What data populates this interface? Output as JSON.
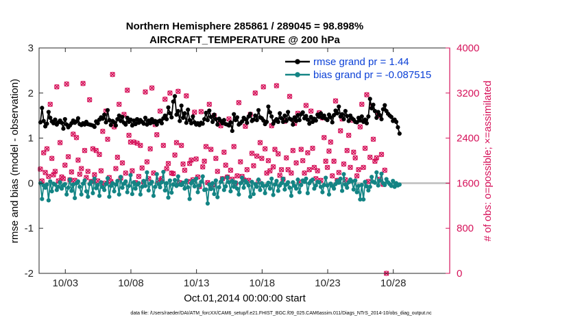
{
  "chart_data": {
    "type": "line",
    "title_line1": "Northern Hemisphere 285861 / 289045 = 98.898%",
    "title_line2": "AIRCRAFT_TEMPERATURE @ 200 hPa",
    "xlabel": "Oct.01,2014 00:00:00 start",
    "ylabel_left": "rmse and bias (model - observation)",
    "ylabel_right": "# of obs: o=possible; ×=assimilated",
    "xlim": [
      0,
      31.3
    ],
    "ylim_left": [
      -2,
      3
    ],
    "ylim_right": [
      0,
      4000
    ],
    "x_ticks": [
      {
        "value": 2,
        "label": "10/03"
      },
      {
        "value": 7,
        "label": "10/08"
      },
      {
        "value": 12,
        "label": "10/13"
      },
      {
        "value": 17,
        "label": "10/18"
      },
      {
        "value": 22,
        "label": "10/23"
      },
      {
        "value": 27,
        "label": "10/28"
      }
    ],
    "y_ticks_left": [
      {
        "value": 3,
        "label": "3"
      },
      {
        "value": 2,
        "label": "2"
      },
      {
        "value": 1,
        "label": "1"
      },
      {
        "value": 0,
        "label": "0"
      },
      {
        "value": -1,
        "label": "-1"
      },
      {
        "value": -2,
        "label": "-2"
      }
    ],
    "y_ticks_right": [
      {
        "value": 4000,
        "label": "4000"
      },
      {
        "value": 3200,
        "label": "3200"
      },
      {
        "value": 2400,
        "label": "2400"
      },
      {
        "value": 1600,
        "label": "1600"
      },
      {
        "value": 800,
        "label": "800"
      },
      {
        "value": 0,
        "label": "0"
      }
    ],
    "colors": {
      "rmse": "#000000",
      "bias": "#138484",
      "obs": "#d6125a",
      "zero_line": "#bdbdbd",
      "legend_text": "#0a3fd6"
    },
    "series": [
      {
        "name": "rmse grand pr = 1.44",
        "axis": "left",
        "values": [
          1.35,
          1.67,
          1.38,
          1.26,
          1.32,
          1.58,
          1.45,
          1.37,
          1.33,
          1.41,
          1.3,
          1.35,
          1.39,
          1.34,
          1.21,
          1.42,
          1.3,
          1.24,
          1.28,
          1.33,
          1.39,
          1.34,
          1.37,
          1.44,
          1.31,
          1.29,
          1.33,
          1.3,
          1.36,
          1.31,
          1.3,
          1.29,
          1.28,
          1.25,
          1.37,
          1.33,
          1.41,
          1.46,
          1.43,
          1.52,
          1.35,
          1.62,
          1.4,
          1.29,
          1.38,
          1.35,
          1.28,
          1.42,
          1.5,
          1.38,
          1.47,
          1.34,
          1.3,
          1.45,
          1.36,
          1.41,
          1.28,
          1.39,
          1.31,
          1.42,
          1.34,
          1.4,
          1.36,
          1.32,
          1.45,
          1.3,
          1.39,
          1.33,
          1.42,
          1.35,
          1.38,
          1.3,
          1.37,
          1.39,
          1.33,
          1.44,
          1.5,
          1.42,
          1.68,
          1.55,
          1.46,
          1.81,
          1.93,
          1.52,
          1.6,
          1.38,
          1.72,
          1.45,
          1.55,
          1.34,
          1.63,
          1.4,
          1.33,
          1.48,
          1.35,
          1.3,
          1.33,
          1.29,
          1.34,
          1.32,
          1.42,
          1.56,
          1.4,
          1.61,
          1.47,
          1.36,
          1.52,
          1.42,
          1.3,
          1.43,
          1.38,
          1.33,
          1.4,
          1.31,
          1.3,
          1.28,
          1.35,
          1.16,
          1.53,
          1.4,
          1.46,
          1.3,
          1.33,
          1.37,
          1.45,
          1.42,
          1.34,
          1.48,
          1.54,
          1.38,
          1.41,
          1.5,
          1.4,
          1.62,
          1.46,
          1.44,
          1.39,
          1.31,
          1.36,
          1.7,
          1.57,
          1.48,
          1.32,
          1.38,
          1.42,
          1.36,
          1.55,
          1.44,
          1.36,
          1.5,
          1.38,
          1.58,
          1.43,
          1.41,
          1.3,
          1.46,
          1.38,
          1.51,
          1.4,
          1.53,
          1.57,
          1.44,
          1.49,
          1.41,
          1.32,
          1.47,
          1.36,
          1.43,
          1.39,
          1.52,
          1.47,
          1.55,
          1.45,
          1.5,
          1.43,
          1.4,
          1.52,
          1.46,
          1.35,
          1.51,
          1.61,
          1.55,
          1.7,
          1.48,
          1.53,
          1.42,
          1.6,
          1.49,
          1.38,
          1.5,
          1.44,
          1.41,
          1.36,
          1.35,
          1.45,
          1.39,
          1.48,
          1.36,
          1.41,
          1.33,
          1.48,
          1.87,
          1.66,
          1.74,
          1.6,
          1.45,
          1.58,
          1.51,
          1.42,
          1.64,
          1.73,
          1.6,
          1.54,
          1.5,
          1.47,
          1.38,
          1.41,
          1.36,
          1.24,
          1.1
        ]
      },
      {
        "name": "bias grand pr = -0.087515",
        "axis": "left",
        "values": [
          0.0,
          -0.35,
          -0.05,
          -0.1,
          -0.03,
          -0.38,
          0.04,
          -0.18,
          -0.01,
          -0.03,
          -0.15,
          -0.08,
          0.02,
          -0.12,
          -0.05,
          -0.02,
          -0.25,
          -0.1,
          0.08,
          -0.17,
          -0.03,
          -0.33,
          0.0,
          0.04,
          -0.08,
          -0.25,
          -0.01,
          0.06,
          -0.18,
          -0.3,
          -0.02,
          0.03,
          -0.22,
          0.1,
          -0.11,
          -0.04,
          -0.28,
          0.02,
          -0.09,
          -0.15,
          -0.02,
          0.11,
          -0.3,
          -0.06,
          0.0,
          -0.18,
          -0.03,
          0.05,
          -0.25,
          0.14,
          -0.1,
          -0.01,
          0.04,
          -0.2,
          -0.06,
          0.18,
          -0.24,
          0.02,
          -0.12,
          -0.03,
          0.0,
          -0.25,
          -0.08,
          0.05,
          -0.06,
          0.24,
          -0.16,
          -0.01,
          0.03,
          -0.28,
          -0.08,
          0.2,
          -0.02,
          -0.09,
          0.02,
          0.25,
          -0.16,
          0.0,
          -0.32,
          0.06,
          -0.21,
          -0.03,
          0.07,
          -0.06,
          0.15,
          -0.03,
          -0.04,
          0.01,
          -0.12,
          0.06,
          -0.09,
          -0.35,
          0.0,
          0.05,
          -0.07,
          0.1,
          -0.2,
          -0.05,
          0.03,
          0.15,
          -0.15,
          -0.14,
          -0.45,
          -0.03,
          -0.13,
          0.0,
          -0.24,
          0.06,
          -0.31,
          -0.09,
          0.03,
          0.1,
          -0.15,
          -0.07,
          0.13,
          0.02,
          -0.18,
          0.05,
          -0.08,
          0.02,
          -0.12,
          -0.25,
          0.0,
          0.12,
          -0.1,
          0.05,
          0.01,
          -0.05,
          -0.3,
          0.03,
          -0.24,
          -0.02,
          -0.08,
          0.08,
          -0.15,
          0.0,
          -0.06,
          -0.22,
          -0.05,
          0.01,
          -0.12,
          0.1,
          -0.26,
          -0.03,
          0.05,
          -0.17,
          -0.05,
          0.0,
          0.1,
          -0.14,
          -0.03,
          0.02,
          -0.1,
          -0.28,
          0.02,
          -0.06,
          -0.12,
          0.08,
          -0.2,
          -0.04,
          0.06,
          0.03,
          0.1,
          -0.22,
          0.0,
          0.05,
          0.08,
          -0.12,
          -0.05,
          0.03,
          0.02,
          -0.08,
          -0.2,
          -0.04,
          0.12,
          -0.05,
          -0.25,
          -0.01,
          -0.06,
          -0.12,
          -0.02,
          0.05,
          0.01,
          0.1,
          -0.17,
          0.2,
          -0.03,
          -0.1,
          0.02,
          0.08,
          0.04,
          -0.14,
          0.06,
          -0.2,
          -0.06,
          -0.36,
          -0.04,
          -0.36,
          0.03,
          -0.07,
          -0.16,
          -0.08,
          0.14,
          0.03,
          0.01,
          0.24,
          -0.05,
          0.06,
          0.21,
          0.0,
          -0.04,
          0.09,
          0.02,
          -0.02,
          -0.06,
          0.05,
          -0.08,
          0.0,
          -0.05,
          -0.03
        ]
      },
      {
        "name": "# of obs possible",
        "axis": "right",
        "marker": "o",
        "values": [
          1850,
          1640,
          2140,
          1790,
          2210,
          1720,
          3000,
          2040,
          1750,
          1810,
          3310,
          1640,
          2320,
          1710,
          1680,
          1920,
          3360,
          2070,
          1660,
          1800,
          2470,
          1650,
          2410,
          2010,
          1760,
          1860,
          3370,
          2180,
          1700,
          1810,
          3080,
          1630,
          2210,
          1750,
          2180,
          1640,
          2110,
          1820,
          2520,
          1600,
          2880,
          2380,
          1700,
          1630,
          3530,
          2600,
          1860,
          2060,
          3000,
          1690,
          1960,
          2820,
          1780,
          3250,
          2450,
          2330,
          1820,
          2330,
          1610,
          2310,
          1720,
          2270,
          1870,
          1620,
          3220,
          1980,
          1680,
          2210,
          3290,
          1780,
          2640,
          2460,
          1650,
          2880,
          1680,
          2270,
          3090,
          1860,
          1950,
          3200,
          1780,
          1770,
          2100,
          2320,
          3230,
          1610,
          2270,
          1940,
          1830,
          3150,
          1630,
          1950,
          2010,
          1660,
          2860,
          2030,
          1710,
          1540,
          2870,
          1890,
          1990,
          2250,
          1610,
          3000,
          2200,
          1570,
          2800,
          2040,
          1810,
          2660,
          2620,
          1680,
          2150,
          1920,
          1710,
          2740,
          1830,
          1670,
          2250,
          1600,
          1730,
          3030,
          1980,
          1720,
          1660,
          2610,
          1840,
          1650,
          2820,
          2130,
          1910,
          3200,
          2080,
          1630,
          2320,
          2040,
          3310,
          2210,
          1780,
          2000,
          1820,
          2620,
          1890,
          2200,
          3330,
          2120,
          1740,
          1840,
          1670,
          2700,
          2050,
          1840,
          3140,
          1780,
          2180,
          2660,
          1960,
          2840,
          1620,
          2200,
          2000,
          1780,
          2980,
          2140,
          1840,
          2880,
          2220,
          1880,
          1680,
          1820,
          2850,
          1650,
          2760,
          2410,
          1990,
          1880,
          2170,
          2330,
          1730,
          1990,
          3060,
          1650,
          1790,
          2530,
          2740,
          1940,
          1660,
          2180,
          2450,
          1880,
          2720,
          2150,
          2050,
          1730,
          1840,
          2600,
          3000,
          1880,
          2220,
          3170,
          1630,
          2060,
          2970,
          2380,
          1990,
          2050,
          2800,
          1670,
          2110,
          1580,
          1830,
          0
        ]
      }
    ]
  },
  "footnote": "data file: /Users/raeder/DAI/ATM_forcXX/CAM6_setup/f.e21.FHIST_BGC.f09_025.CAM6assim.011/Diags_NTrS_2014-10/obs_diag_output.nc"
}
